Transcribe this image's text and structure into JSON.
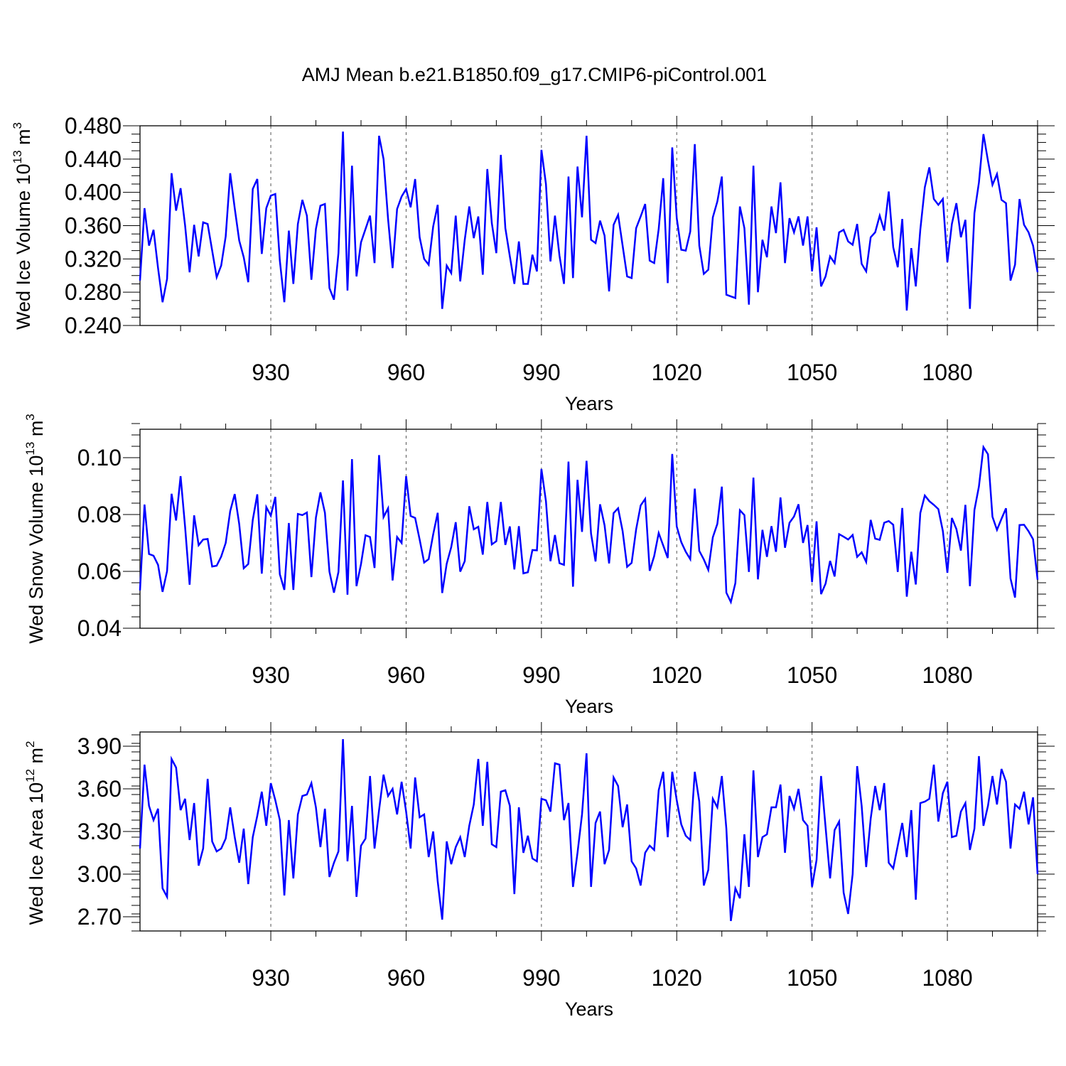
{
  "chart_data": [
    {
      "type": "line",
      "title": "AMJ Mean b.e21.B1850.f09_g17.CMIP6-piControl.001",
      "xlabel": "Years",
      "ylabel": {
        "base": "Wed Ice Volume 10",
        "exp": "13",
        "unit": " m",
        "unit_exp": "3"
      },
      "xlim": [
        901,
        1100
      ],
      "ylim": [
        0.24,
        0.48
      ],
      "xticks": [
        930,
        960,
        990,
        1020,
        1050,
        1080
      ],
      "xtick_labels": [
        "930",
        "960",
        "990",
        "1020",
        "1050",
        "1080"
      ],
      "yticks": [
        0.24,
        0.28,
        0.32,
        0.36,
        0.4,
        0.44,
        0.48
      ],
      "ytick_labels": [
        "0.240",
        "0.280",
        "0.320",
        "0.360",
        "0.400",
        "0.440",
        "0.480"
      ],
      "grid": "dashed vertical at major x ticks",
      "series": [
        {
          "name": "Wed Ice Volume",
          "color": "#0000ff",
          "x_start": 901,
          "values": [
            0.294,
            0.381,
            0.336,
            0.355,
            0.309,
            0.268,
            0.296,
            0.423,
            0.378,
            0.405,
            0.36,
            0.304,
            0.361,
            0.323,
            0.364,
            0.362,
            0.33,
            0.298,
            0.312,
            0.347,
            0.423,
            0.381,
            0.342,
            0.322,
            0.292,
            0.404,
            0.416,
            0.326,
            0.381,
            0.396,
            0.398,
            0.318,
            0.268,
            0.354,
            0.29,
            0.362,
            0.391,
            0.372,
            0.295,
            0.356,
            0.384,
            0.386,
            0.285,
            0.271,
            0.327,
            0.473,
            0.282,
            0.432,
            0.299,
            0.34,
            0.356,
            0.372,
            0.315,
            0.468,
            0.44,
            0.368,
            0.309,
            0.38,
            0.395,
            0.404,
            0.382,
            0.416,
            0.346,
            0.32,
            0.313,
            0.359,
            0.385,
            0.26,
            0.312,
            0.303,
            0.372,
            0.293,
            0.343,
            0.383,
            0.345,
            0.371,
            0.301,
            0.428,
            0.363,
            0.327,
            0.445,
            0.357,
            0.323,
            0.29,
            0.341,
            0.29,
            0.29,
            0.325,
            0.305,
            0.451,
            0.41,
            0.317,
            0.372,
            0.324,
            0.29,
            0.419,
            0.297,
            0.431,
            0.37,
            0.468,
            0.343,
            0.339,
            0.366,
            0.348,
            0.281,
            0.361,
            0.373,
            0.336,
            0.299,
            0.297,
            0.357,
            0.371,
            0.386,
            0.318,
            0.315,
            0.356,
            0.417,
            0.291,
            0.454,
            0.369,
            0.331,
            0.33,
            0.353,
            0.458,
            0.336,
            0.302,
            0.307,
            0.37,
            0.389,
            0.419,
            0.277,
            0.275,
            0.273,
            0.383,
            0.357,
            0.265,
            0.432,
            0.28,
            0.343,
            0.322,
            0.383,
            0.351,
            0.412,
            0.315,
            0.369,
            0.352,
            0.371,
            0.336,
            0.371,
            0.305,
            0.358,
            0.287,
            0.299,
            0.323,
            0.315,
            0.352,
            0.355,
            0.341,
            0.337,
            0.362,
            0.314,
            0.305,
            0.346,
            0.352,
            0.372,
            0.354,
            0.401,
            0.334,
            0.31,
            0.368,
            0.258,
            0.333,
            0.287,
            0.355,
            0.406,
            0.43,
            0.392,
            0.385,
            0.392,
            0.316,
            0.362,
            0.387,
            0.346,
            0.367,
            0.26,
            0.375,
            0.412,
            0.47,
            0.438,
            0.409,
            0.422,
            0.391,
            0.387,
            0.294,
            0.313,
            0.392,
            0.361,
            0.352,
            0.336,
            0.304
          ]
        }
      ]
    },
    {
      "type": "line",
      "xlabel": "Years",
      "ylabel": {
        "base": "Wed Snow Volume 10",
        "exp": "13",
        "unit": " m",
        "unit_exp": "3"
      },
      "xlim": [
        901,
        1100
      ],
      "ylim": [
        0.04,
        0.11
      ],
      "xticks": [
        930,
        960,
        990,
        1020,
        1050,
        1080
      ],
      "xtick_labels": [
        "930",
        "960",
        "990",
        "1020",
        "1050",
        "1080"
      ],
      "yticks": [
        0.04,
        0.06,
        0.08,
        0.1
      ],
      "ytick_labels": [
        "0.04",
        "0.06",
        "0.08",
        "0.10"
      ],
      "grid": "dashed vertical at major x ticks",
      "series": [
        {
          "name": "Wed Snow Volume",
          "color": "#0000ff",
          "x_start": 901,
          "values": [
            0.0533,
            0.0835,
            0.0661,
            0.0655,
            0.0623,
            0.0528,
            0.0601,
            0.0873,
            0.0779,
            0.0935,
            0.0756,
            0.0553,
            0.0797,
            0.0692,
            0.0712,
            0.0714,
            0.0617,
            0.062,
            0.0652,
            0.07,
            0.0812,
            0.0872,
            0.0766,
            0.0611,
            0.0626,
            0.0781,
            0.0871,
            0.0592,
            0.0826,
            0.0796,
            0.0862,
            0.059,
            0.0535,
            0.077,
            0.0535,
            0.0802,
            0.0798,
            0.0807,
            0.058,
            0.0789,
            0.0878,
            0.0806,
            0.0599,
            0.0525,
            0.0598,
            0.092,
            0.0518,
            0.0995,
            0.0548,
            0.0626,
            0.0727,
            0.0721,
            0.0612,
            0.1009,
            0.0791,
            0.0822,
            0.0568,
            0.0721,
            0.07,
            0.0935,
            0.0795,
            0.0788,
            0.0712,
            0.0631,
            0.0643,
            0.073,
            0.0806,
            0.0524,
            0.0627,
            0.0685,
            0.0773,
            0.0599,
            0.0636,
            0.0829,
            0.0748,
            0.0757,
            0.0659,
            0.0844,
            0.0695,
            0.0706,
            0.0844,
            0.0693,
            0.0758,
            0.0607,
            0.0759,
            0.0593,
            0.0597,
            0.0675,
            0.0674,
            0.096,
            0.0847,
            0.0636,
            0.0728,
            0.0629,
            0.0623,
            0.0986,
            0.0546,
            0.0922,
            0.0739,
            0.0989,
            0.0733,
            0.0635,
            0.0836,
            0.0762,
            0.0628,
            0.0805,
            0.0822,
            0.0742,
            0.0616,
            0.063,
            0.0748,
            0.0832,
            0.0855,
            0.0602,
            0.0654,
            0.0735,
            0.0691,
            0.0647,
            0.1013,
            0.0758,
            0.0703,
            0.0669,
            0.0643,
            0.0891,
            0.0672,
            0.0642,
            0.0605,
            0.072,
            0.0767,
            0.0898,
            0.0525,
            0.0492,
            0.0559,
            0.0815,
            0.0798,
            0.0598,
            0.093,
            0.0572,
            0.0746,
            0.0651,
            0.0759,
            0.0669,
            0.086,
            0.0683,
            0.0771,
            0.0793,
            0.0836,
            0.07,
            0.0763,
            0.0562,
            0.0776,
            0.052,
            0.0557,
            0.0637,
            0.0582,
            0.0731,
            0.0722,
            0.0712,
            0.0728,
            0.0651,
            0.0667,
            0.0633,
            0.0781,
            0.0715,
            0.0711,
            0.0771,
            0.0777,
            0.0764,
            0.0598,
            0.0823,
            0.0511,
            0.0669,
            0.0554,
            0.0805,
            0.0867,
            0.0847,
            0.0834,
            0.0819,
            0.0742,
            0.0595,
            0.0788,
            0.0749,
            0.0673,
            0.0834,
            0.0548,
            0.0816,
            0.0899,
            0.1037,
            0.1012,
            0.0792,
            0.0746,
            0.0785,
            0.0822,
            0.0575,
            0.0508,
            0.0763,
            0.0764,
            0.0741,
            0.0713,
            0.0571
          ]
        }
      ]
    },
    {
      "type": "line",
      "xlabel": "Years",
      "ylabel": {
        "base": "Wed Ice Area 10",
        "exp": "12",
        "unit": " m",
        "unit_exp": "2"
      },
      "xlim": [
        901,
        1100
      ],
      "ylim": [
        2.6,
        4.0
      ],
      "xticks": [
        930,
        960,
        990,
        1020,
        1050,
        1080
      ],
      "xtick_labels": [
        "930",
        "960",
        "990",
        "1020",
        "1050",
        "1080"
      ],
      "yticks": [
        2.7,
        3.0,
        3.3,
        3.6,
        3.9
      ],
      "ytick_labels": [
        "2.70",
        "3.00",
        "3.30",
        "3.60",
        "3.90"
      ],
      "grid": "dashed vertical at major x ticks",
      "series": [
        {
          "name": "Wed Ice Area",
          "color": "#0000ff",
          "x_start": 901,
          "values": [
            3.18,
            3.77,
            3.48,
            3.38,
            3.46,
            2.9,
            2.84,
            3.81,
            3.75,
            3.45,
            3.53,
            3.24,
            3.5,
            3.06,
            3.18,
            3.67,
            3.23,
            3.16,
            3.18,
            3.25,
            3.47,
            3.26,
            3.08,
            3.32,
            2.93,
            3.26,
            3.41,
            3.58,
            3.34,
            3.64,
            3.52,
            3.38,
            2.85,
            3.38,
            2.97,
            3.42,
            3.55,
            3.56,
            3.64,
            3.47,
            3.19,
            3.46,
            2.98,
            3.08,
            3.16,
            3.95,
            3.09,
            3.48,
            2.84,
            3.2,
            3.25,
            3.69,
            3.18,
            3.45,
            3.7,
            3.55,
            3.6,
            3.42,
            3.65,
            3.44,
            3.18,
            3.68,
            3.4,
            3.42,
            3.12,
            3.3,
            2.95,
            2.68,
            3.23,
            3.07,
            3.19,
            3.26,
            3.12,
            3.34,
            3.49,
            3.81,
            3.34,
            3.79,
            3.21,
            3.19,
            3.58,
            3.59,
            3.48,
            2.86,
            3.47,
            3.15,
            3.27,
            3.11,
            3.09,
            3.53,
            3.52,
            3.44,
            3.78,
            3.77,
            3.38,
            3.5,
            2.91,
            3.15,
            3.42,
            3.85,
            2.91,
            3.36,
            3.44,
            3.07,
            3.17,
            3.68,
            3.62,
            3.33,
            3.49,
            3.09,
            3.04,
            2.92,
            3.15,
            3.2,
            3.17,
            3.59,
            3.72,
            3.26,
            3.72,
            3.52,
            3.35,
            3.27,
            3.24,
            3.72,
            3.51,
            2.92,
            3.03,
            3.53,
            3.47,
            3.69,
            3.32,
            2.67,
            2.9,
            2.83,
            3.28,
            2.91,
            3.73,
            3.12,
            3.26,
            3.28,
            3.47,
            3.47,
            3.63,
            3.15,
            3.55,
            3.46,
            3.6,
            3.38,
            3.34,
            2.91,
            3.1,
            3.69,
            3.33,
            2.97,
            3.31,
            3.37,
            2.87,
            2.72,
            3.0,
            3.76,
            3.48,
            3.05,
            3.39,
            3.62,
            3.45,
            3.64,
            3.08,
            3.04,
            3.2,
            3.36,
            3.12,
            3.45,
            2.82,
            3.5,
            3.51,
            3.53,
            3.77,
            3.37,
            3.57,
            3.65,
            3.26,
            3.27,
            3.44,
            3.5,
            3.17,
            3.32,
            3.83,
            3.34,
            3.48,
            3.69,
            3.49,
            3.74,
            3.65,
            3.18,
            3.49,
            3.46,
            3.58,
            3.35,
            3.54,
            3.0
          ]
        }
      ]
    }
  ]
}
